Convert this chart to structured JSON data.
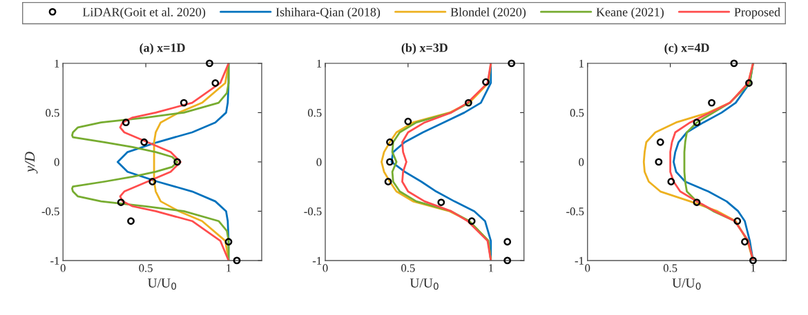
{
  "chart_data": [
    {
      "type": "line",
      "title": "(a) x=1D",
      "xlabel": "U/U$_{0}$",
      "ylabel": "y/D",
      "xlim": [
        0,
        1.2
      ],
      "xticks": [
        0,
        0.5,
        1
      ],
      "ylim": [
        -1,
        1
      ],
      "yticks": [
        -1,
        -0.5,
        0,
        0.5,
        1
      ],
      "grid": false,
      "legend": "top",
      "line_style": "solid",
      "series": [
        {
          "name": "LiDAR(Goit et al. 2020)",
          "type": "scatter",
          "marker": "circle",
          "color": "#000000",
          "x": [
            0.885,
            0.92,
            0.73,
            0.38,
            0.49,
            0.69,
            0.54,
            0.35,
            0.41,
            1.0,
            1.05
          ],
          "values": [
            1,
            0.8,
            0.6,
            0.4,
            0.2,
            0,
            -0.2,
            -0.41,
            -0.6,
            -0.81,
            -1
          ]
        },
        {
          "name": "Ishihara-Qian (2018)",
          "color": "#0072bd",
          "x": [
            1,
            1,
            0.995,
            0.985,
            0.92,
            0.78,
            0.57,
            0.39,
            0.33,
            0.39,
            0.57,
            0.78,
            0.92,
            0.985,
            0.995,
            1,
            1
          ],
          "values": [
            1,
            0.8,
            0.6,
            0.5,
            0.4,
            0.3,
            0.2,
            0.1,
            0,
            -0.1,
            -0.2,
            -0.3,
            -0.4,
            -0.5,
            -0.6,
            -0.8,
            -1
          ]
        },
        {
          "name": "Blondel (2020)",
          "color": "#edb120",
          "x": [
            1,
            0.98,
            0.84,
            0.7,
            0.59,
            0.56,
            0.55,
            0.55,
            0.55,
            0.55,
            0.55,
            0.56,
            0.59,
            0.7,
            0.84,
            0.98,
            1
          ],
          "values": [
            1,
            0.8,
            0.6,
            0.5,
            0.4,
            0.3,
            0.2,
            0.1,
            0,
            -0.1,
            -0.2,
            -0.3,
            -0.4,
            -0.5,
            -0.6,
            -0.8,
            -1
          ]
        },
        {
          "name": "Keane (2021)",
          "color": "#77ac30",
          "x": [
            1,
            1,
            0.99,
            0.94,
            0.73,
            0.5,
            0.23,
            0.09,
            0.06,
            0.055,
            0.06,
            0.25,
            0.42,
            0.56,
            0.66,
            0.69,
            0.66,
            0.56,
            0.42,
            0.25,
            0.06,
            0.055,
            0.06,
            0.09,
            0.23,
            0.5,
            0.73,
            0.94,
            0.99,
            1,
            1
          ],
          "values": [
            1,
            0.8,
            0.7,
            0.6,
            0.5,
            0.45,
            0.4,
            0.35,
            0.3,
            0.27,
            0.25,
            0.2,
            0.15,
            0.1,
            0.05,
            0,
            -0.05,
            -0.1,
            -0.15,
            -0.2,
            -0.25,
            -0.27,
            -0.3,
            -0.35,
            -0.4,
            -0.45,
            -0.5,
            -0.6,
            -0.7,
            -0.8,
            -1
          ]
        },
        {
          "name": "Proposed",
          "color": "#ff4d4d",
          "x": [
            1,
            0.95,
            0.78,
            0.56,
            0.42,
            0.36,
            0.345,
            0.37,
            0.51,
            0.65,
            0.71,
            0.65,
            0.51,
            0.37,
            0.345,
            0.36,
            0.42,
            0.56,
            0.78,
            0.95,
            1
          ],
          "values": [
            1,
            0.8,
            0.6,
            0.5,
            0.45,
            0.4,
            0.35,
            0.3,
            0.2,
            0.1,
            0,
            -0.1,
            -0.2,
            -0.3,
            -0.35,
            -0.4,
            -0.45,
            -0.5,
            -0.6,
            -0.8,
            -1
          ]
        }
      ]
    },
    {
      "type": "line",
      "title": "(b) x=3D",
      "xlabel": "U/U$_{0}$",
      "xlim": [
        0,
        1.2
      ],
      "xticks": [
        0,
        0.5,
        1
      ],
      "ylim": [
        -1,
        1
      ],
      "yticks": [
        -1,
        -0.5,
        0,
        0.5,
        1
      ],
      "grid": false,
      "line_style": "solid",
      "series": [
        {
          "type": "scatter",
          "marker": "circle",
          "color": "#000000",
          "x": [
            1.125,
            0.97,
            0.865,
            0.5,
            0.39,
            0.39,
            0.38,
            0.7,
            0.885,
            1.1,
            1.1
          ],
          "values": [
            1,
            0.81,
            0.6,
            0.41,
            0.2,
            0,
            -0.2,
            -0.41,
            -0.6,
            -0.81,
            -1
          ]
        },
        {
          "color": "#0072bd",
          "x": [
            1,
            1,
            0.94,
            0.84,
            0.715,
            0.59,
            0.48,
            0.41,
            0.4,
            0.48,
            0.58,
            0.67,
            0.78,
            0.9,
            0.965,
            1,
            1
          ],
          "values": [
            1,
            0.8,
            0.6,
            0.5,
            0.4,
            0.3,
            0.2,
            0.1,
            0,
            -0.1,
            -0.2,
            -0.3,
            -0.4,
            -0.5,
            -0.6,
            -0.8,
            -1
          ]
        },
        {
          "color": "#edb120",
          "x": [
            1,
            0.985,
            0.87,
            0.75,
            0.53,
            0.43,
            0.39,
            0.355,
            0.34,
            0.355,
            0.39,
            0.43,
            0.53,
            0.75,
            0.87,
            0.985,
            1
          ],
          "values": [
            1,
            0.8,
            0.6,
            0.5,
            0.4,
            0.3,
            0.2,
            0.1,
            0,
            -0.1,
            -0.2,
            -0.3,
            -0.4,
            -0.5,
            -0.6,
            -0.8,
            -1
          ]
        },
        {
          "color": "#77ac30",
          "x": [
            null,
            null,
            0.87,
            0.76,
            0.55,
            0.45,
            0.41,
            0.405,
            0.43,
            0.405,
            0.41,
            0.45,
            0.55,
            0.76,
            0.87,
            0.985,
            1
          ],
          "values": [
            null,
            null,
            0.6,
            0.5,
            0.4,
            0.3,
            0.2,
            0.1,
            0,
            -0.1,
            -0.2,
            -0.3,
            -0.4,
            -0.5,
            -0.6,
            -0.8,
            -1
          ]
        },
        {
          "color": "#ff4d4d",
          "x": [
            1,
            0.98,
            0.86,
            0.76,
            0.6,
            0.5,
            0.465,
            0.47,
            0.49,
            0.47,
            0.465,
            0.5,
            0.6,
            0.76,
            0.86,
            0.98,
            1
          ],
          "values": [
            1,
            0.8,
            0.6,
            0.5,
            0.4,
            0.3,
            0.2,
            0.1,
            0,
            -0.1,
            -0.2,
            -0.3,
            -0.4,
            -0.5,
            -0.6,
            -0.8,
            -1
          ]
        }
      ]
    },
    {
      "type": "line",
      "title": "(c) x=4D",
      "xlabel": "U/U$_{0}$",
      "xlim": [
        0,
        1.2
      ],
      "xticks": [
        0,
        0.5,
        1
      ],
      "ylim": [
        -1,
        1
      ],
      "yticks": [
        -1,
        -0.5,
        0,
        0.5,
        1
      ],
      "grid": false,
      "line_style": "solid",
      "series": [
        {
          "type": "scatter",
          "marker": "circle",
          "color": "#000000",
          "x": [
            0.885,
            0.975,
            0.75,
            0.66,
            0.44,
            0.43,
            0.505,
            0.66,
            0.905,
            0.95,
            1.0
          ],
          "values": [
            1,
            0.8,
            0.6,
            0.4,
            0.2,
            0,
            -0.2,
            -0.41,
            -0.6,
            -0.81,
            -1
          ]
        },
        {
          "color": "#0072bd",
          "x": [
            1,
            0.98,
            0.895,
            0.81,
            0.7,
            0.6,
            0.55,
            0.53,
            0.52,
            0.535,
            0.59,
            0.73,
            0.84,
            0.91,
            0.95,
            0.98,
            1
          ],
          "values": [
            1,
            0.8,
            0.6,
            0.5,
            0.4,
            0.3,
            0.2,
            0.1,
            0,
            -0.1,
            -0.2,
            -0.3,
            -0.4,
            -0.5,
            -0.6,
            -0.8,
            -1
          ]
        },
        {
          "color": "#edb120",
          "x": [
            1,
            0.97,
            0.86,
            0.73,
            0.535,
            0.41,
            0.355,
            0.345,
            0.34,
            0.345,
            0.37,
            0.44,
            0.62,
            0.785,
            0.895,
            0.965,
            1
          ],
          "values": [
            1,
            0.8,
            0.6,
            0.5,
            0.4,
            0.3,
            0.2,
            0.1,
            0,
            -0.1,
            -0.2,
            -0.3,
            -0.4,
            -0.5,
            -0.6,
            -0.8,
            -1
          ]
        },
        {
          "color": "#77ac30",
          "x": [
            1,
            0.98,
            0.86,
            0.76,
            0.66,
            0.6,
            0.59,
            0.585,
            0.585,
            0.585,
            0.59,
            0.6,
            0.66,
            0.76,
            0.89,
            0.97,
            1
          ],
          "values": [
            1,
            0.8,
            0.6,
            0.5,
            0.4,
            0.3,
            0.2,
            0.1,
            0,
            -0.1,
            -0.2,
            -0.3,
            -0.4,
            -0.5,
            -0.6,
            -0.8,
            -1
          ]
        },
        {
          "color": "#ff4d4d",
          "x": [
            1,
            0.97,
            0.86,
            0.74,
            0.62,
            0.53,
            0.51,
            0.5,
            0.5,
            0.5,
            0.52,
            0.56,
            0.66,
            0.77,
            0.89,
            0.97,
            1
          ],
          "values": [
            1,
            0.8,
            0.6,
            0.5,
            0.4,
            0.3,
            0.2,
            0.1,
            0,
            -0.1,
            -0.2,
            -0.3,
            -0.4,
            -0.5,
            -0.6,
            -0.8,
            -1
          ]
        }
      ]
    }
  ]
}
